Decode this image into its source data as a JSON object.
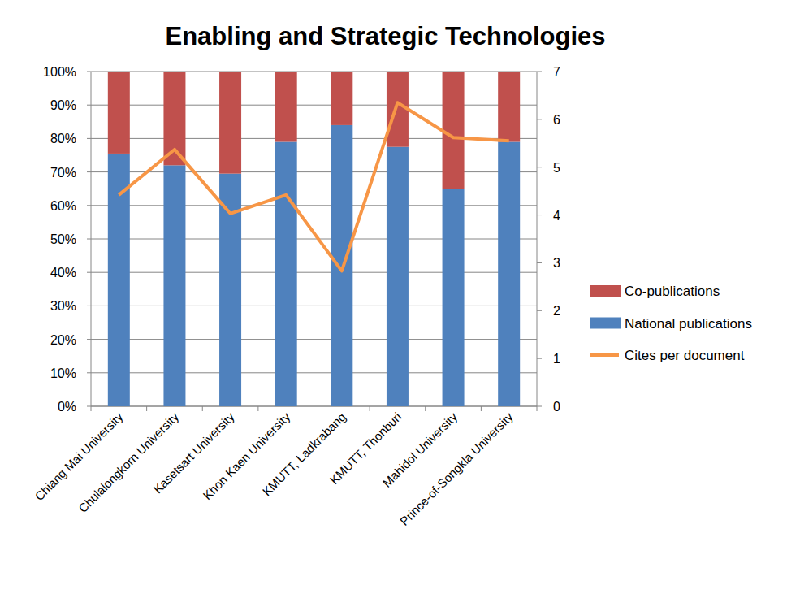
{
  "chart_data": {
    "type": "bar",
    "title": "Enabling and Strategic Technologies",
    "stacked": true,
    "grid": true,
    "legend": "right",
    "categories": [
      "Chiang Mai University",
      "Chulalongkorn University",
      "Kasetsart University",
      "Khon Kaen University",
      "KMUTT, Ladkrabang",
      "KMUTT, Thonburi",
      "Mahidol University",
      "Prince-of-Songkla University"
    ],
    "series": [
      {
        "name": "National publications",
        "color": "#4f81bd",
        "values": [
          75.5,
          72,
          69.5,
          79,
          84,
          77.5,
          65,
          79
        ]
      },
      {
        "name": "Co-publications",
        "color": "#c0504d",
        "values": [
          24.5,
          28,
          30.5,
          21,
          16,
          22.5,
          35,
          21
        ]
      },
      {
        "name": "Cites per document",
        "color": "#f79646",
        "type": "line",
        "axis": "y2",
        "values": [
          4.42,
          5.37,
          4.03,
          4.42,
          2.83,
          6.35,
          5.62,
          5.55
        ]
      }
    ],
    "ylim": [
      0,
      100
    ],
    "yticks": [
      {
        "value": 0,
        "label": "0%"
      },
      {
        "value": 10,
        "label": "10%"
      },
      {
        "value": 20,
        "label": "20%"
      },
      {
        "value": 30,
        "label": "30%"
      },
      {
        "value": 40,
        "label": "40%"
      },
      {
        "value": 50,
        "label": "50%"
      },
      {
        "value": 60,
        "label": "60%"
      },
      {
        "value": 70,
        "label": "70%"
      },
      {
        "value": 80,
        "label": "80%"
      },
      {
        "value": 90,
        "label": "90%"
      },
      {
        "value": 100,
        "label": "100%"
      }
    ],
    "y2lim": [
      0,
      7
    ],
    "y2ticks": [
      0,
      1,
      2,
      3,
      4,
      5,
      6,
      7
    ]
  }
}
